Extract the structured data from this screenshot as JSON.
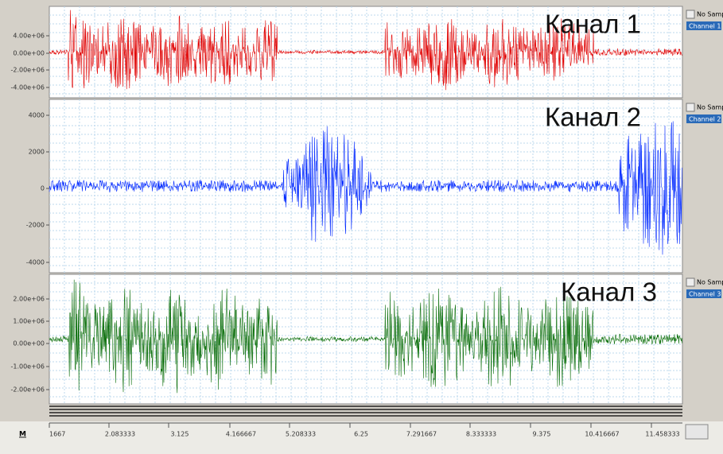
{
  "channels": [
    {
      "title": "Канал 1",
      "yticks": [
        "4.00e+06",
        "0.00e+00",
        "-2.00e+06",
        "-4.00e+06"
      ],
      "dropdown": "No Samp",
      "button": "Channel 1"
    },
    {
      "title": "Канал 2",
      "yticks": [
        "4000",
        "2000",
        "0",
        "-2000",
        "-4000"
      ],
      "dropdown": "No Samp",
      "button": "Channel 2"
    },
    {
      "title": "Канал 3",
      "yticks": [
        "2.00e+06",
        "1.00e+06",
        "0.00e+00",
        "-1.00e+06",
        "-2.00e+06"
      ],
      "dropdown": "No Samp",
      "button": "Channel 3"
    }
  ],
  "xaxis": {
    "marker": "M",
    "labels": [
      "1667",
      "2.083333",
      "3.125",
      "4.166667",
      "5.208333",
      "6.25",
      "7.291667",
      "8.333333",
      "9.375",
      "10.416667",
      "11.458333"
    ]
  }
}
